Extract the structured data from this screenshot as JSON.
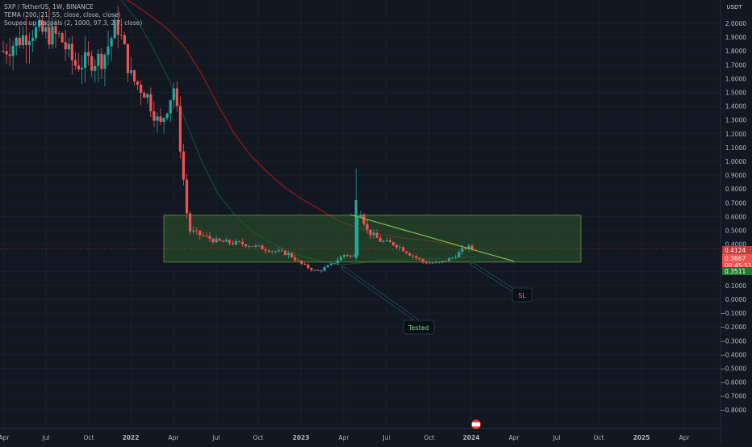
{
  "header": {
    "symbol_line": "SXP / TetherUS, 1W, BINANCE",
    "indicator_1": "TEMA (200, 21, 55, close, close, close)",
    "indicator_2": "Soupee up Bagpals (2, 1000, 97.3, 2.7, close)"
  },
  "axis": {
    "currency_label": "USDT",
    "y_ticks": [
      "2.0000",
      "1.9000",
      "1.8000",
      "1.7000",
      "1.6000",
      "1.5000",
      "1.4000",
      "1.3000",
      "1.2000",
      "1.1000",
      "1.0000",
      "0.9000",
      "0.8000",
      "0.7000",
      "0.6000",
      "0.5000",
      "0.4000",
      "0.3000",
      "0.2000",
      "0.1000",
      "0.0000",
      "−0.1000",
      "−0.2000",
      "−0.3000",
      "−0.4000",
      "−0.5000",
      "−0.6000",
      "−0.7000",
      "−0.8000"
    ],
    "x_ticks": [
      "Apr",
      "Jul",
      "Oct",
      "2022",
      "Apr",
      "Jul",
      "Oct",
      "2023",
      "Apr",
      "Jul",
      "Oct",
      "2024",
      "Apr",
      "Jul",
      "Oct",
      "2025",
      "Apr"
    ]
  },
  "price_labels": {
    "upper": "0.4124",
    "last": "0.3667",
    "countdown": "09:45:51",
    "lower": "0.3511"
  },
  "annotations": {
    "tested": "Tested",
    "sl": "SL"
  },
  "colors": {
    "background": "#131722",
    "up": "#26a69a",
    "down": "#ef5350",
    "zone_fill": "#2e5a2a",
    "zone_border": "#8bc34a",
    "trendline": "#8bc34a",
    "tema_red": "#8b1a1a",
    "tema_green": "#0f4a3a"
  },
  "chart_data": {
    "type": "candlestick",
    "ylim": [
      -0.8,
      2.0
    ],
    "x_range": [
      "2021-03",
      "2025-04"
    ],
    "support_zone": {
      "top": 0.61,
      "bottom": 0.27
    },
    "trendline": {
      "start": [
        "2023-03-27",
        0.7
      ],
      "end": [
        "2024-04-01",
        0.27
      ]
    },
    "candles_approx": [
      {
        "date": "2021-06",
        "open": 1.75,
        "high": 2.05,
        "low": 1.4,
        "close": 1.95
      },
      {
        "date": "2021-09",
        "open": 1.9,
        "high": 2.0,
        "low": 1.6,
        "close": 1.68
      },
      {
        "date": "2021-11",
        "open": 1.8,
        "high": 2.1,
        "low": 1.6,
        "close": 2.0
      },
      {
        "date": "2022-01",
        "open": 1.8,
        "high": 2.0,
        "low": 1.5,
        "close": 1.55
      },
      {
        "date": "2022-03",
        "open": 1.3,
        "high": 1.6,
        "low": 1.1,
        "close": 1.5
      },
      {
        "date": "2022-05",
        "open": 1.1,
        "high": 1.2,
        "low": 0.45,
        "close": 0.5
      },
      {
        "date": "2022-07",
        "open": 0.45,
        "high": 0.55,
        "low": 0.35,
        "close": 0.4
      },
      {
        "date": "2022-09",
        "open": 0.4,
        "high": 0.5,
        "low": 0.3,
        "close": 0.35
      },
      {
        "date": "2022-11",
        "open": 0.3,
        "high": 0.35,
        "low": 0.15,
        "close": 0.2
      },
      {
        "date": "2023-01",
        "open": 0.22,
        "high": 0.35,
        "low": 0.2,
        "close": 0.33
      },
      {
        "date": "2023-03",
        "open": 0.35,
        "high": 0.95,
        "low": 0.3,
        "close": 0.7
      },
      {
        "date": "2023-05",
        "open": 0.55,
        "high": 0.6,
        "low": 0.35,
        "close": 0.4
      },
      {
        "date": "2023-07",
        "open": 0.4,
        "high": 0.45,
        "low": 0.3,
        "close": 0.33
      },
      {
        "date": "2023-09",
        "open": 0.3,
        "high": 0.33,
        "low": 0.22,
        "close": 0.25
      },
      {
        "date": "2023-11",
        "open": 0.28,
        "high": 0.4,
        "low": 0.26,
        "close": 0.38
      },
      {
        "date": "2024-01",
        "open": 0.4,
        "high": 0.45,
        "low": 0.35,
        "close": 0.3667
      }
    ]
  }
}
